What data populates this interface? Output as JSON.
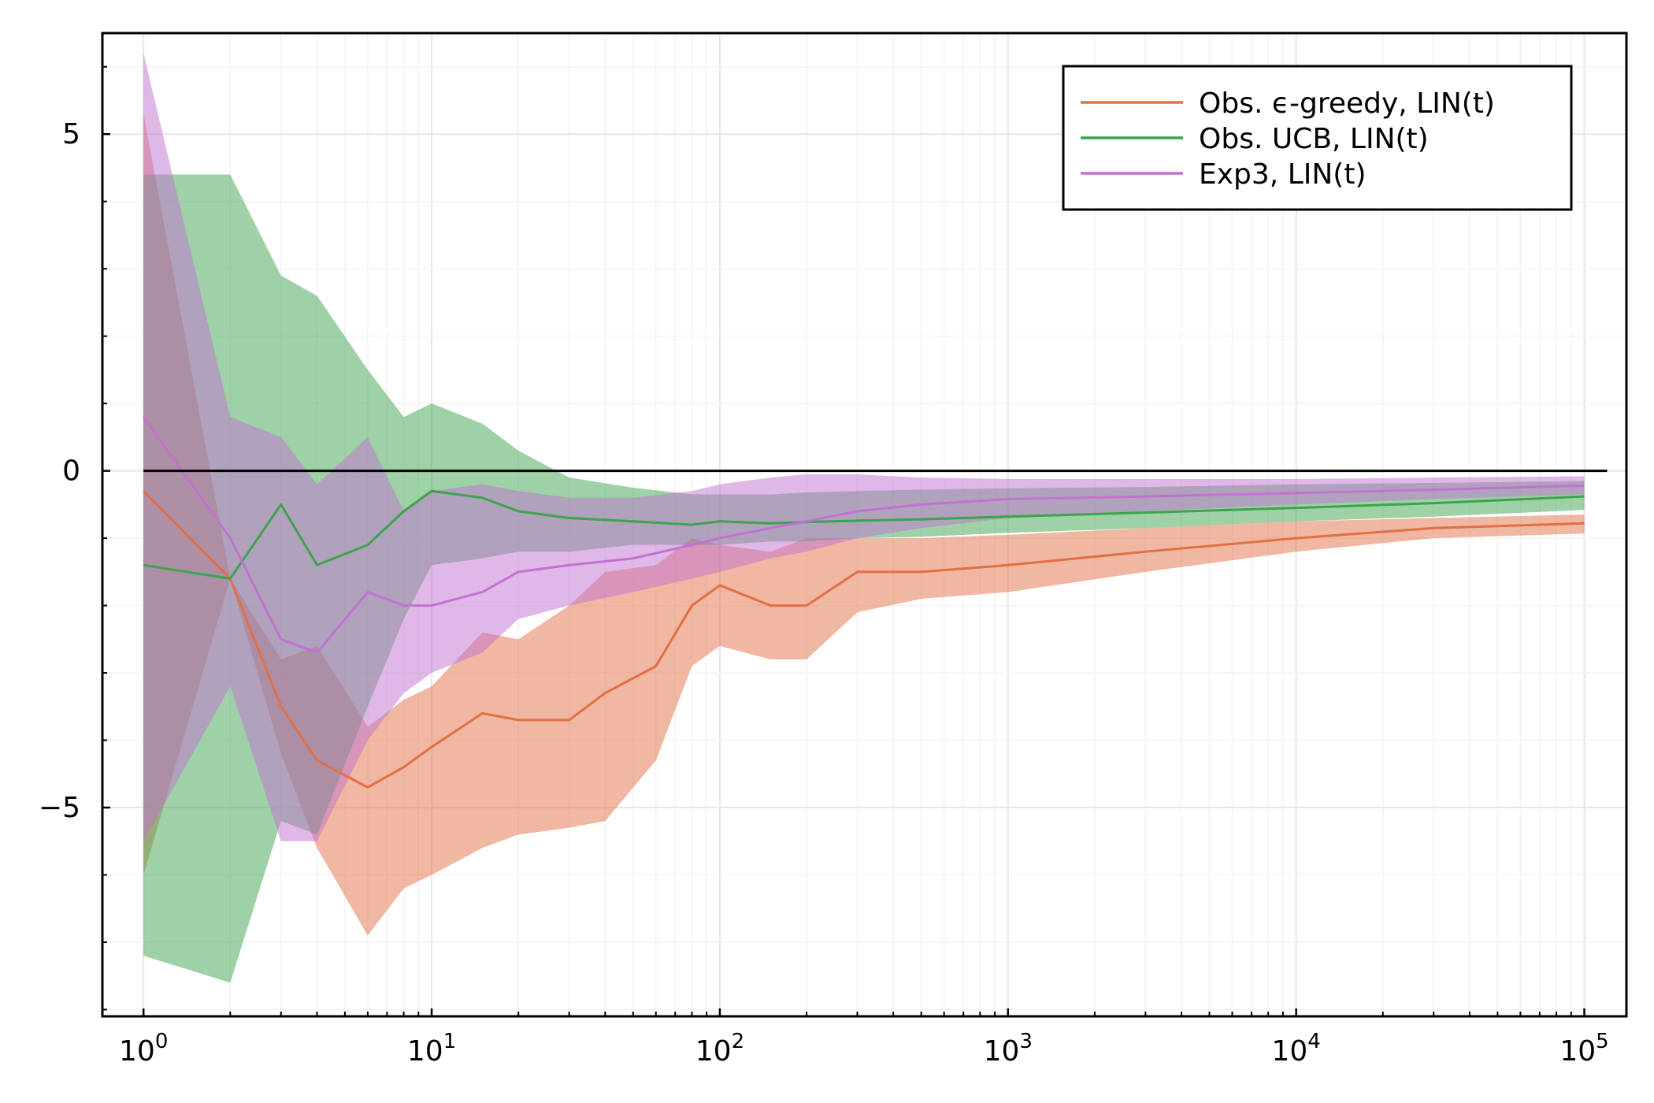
{
  "chart_data": {
    "type": "line",
    "title": "",
    "xlabel": "",
    "ylabel": "",
    "xscale": "log10",
    "xlim": [
      0.72,
      140000
    ],
    "ylim": [
      -8.1,
      6.5
    ],
    "grid": true,
    "legend_position": "top-right",
    "x_ticks": [
      {
        "value": 1,
        "base": "10",
        "exp": "0"
      },
      {
        "value": 10,
        "base": "10",
        "exp": "1"
      },
      {
        "value": 100,
        "base": "10",
        "exp": "2"
      },
      {
        "value": 1000,
        "base": "10",
        "exp": "3"
      },
      {
        "value": 10000,
        "base": "10",
        "exp": "4"
      },
      {
        "value": 100000,
        "base": "10",
        "exp": "5"
      }
    ],
    "y_ticks": [
      {
        "value": 5,
        "label": "5"
      },
      {
        "value": 0,
        "label": "0"
      },
      {
        "value": -5,
        "label": "−5"
      }
    ],
    "reference_line": {
      "y": 0,
      "x_range": [
        1,
        120000
      ],
      "color": "#000000"
    },
    "series": [
      {
        "name": "Obs. ϵ-greedy, LIN(t)",
        "color": "#e26f46",
        "x": [
          1,
          2,
          3,
          4,
          6,
          8,
          10,
          15,
          20,
          30,
          40,
          60,
          80,
          100,
          150,
          200,
          300,
          500,
          1000,
          3000,
          10000,
          30000,
          100000
        ],
        "mean": [
          -0.3,
          -1.6,
          -3.5,
          -4.3,
          -4.7,
          -4.4,
          -4.1,
          -3.6,
          -3.7,
          -3.7,
          -3.3,
          -2.9,
          -2.0,
          -1.7,
          -2.0,
          -2.0,
          -1.5,
          -1.5,
          -1.4,
          -1.2,
          -1.0,
          -0.85,
          -0.78
        ],
        "lower": [
          -6.0,
          -1.6,
          -4.2,
          -5.6,
          -6.9,
          -6.2,
          -6.0,
          -5.6,
          -5.4,
          -5.3,
          -5.2,
          -4.3,
          -2.9,
          -2.6,
          -2.8,
          -2.8,
          -2.1,
          -1.9,
          -1.8,
          -1.5,
          -1.2,
          -1.0,
          -0.93
        ],
        "upper": [
          5.3,
          -1.6,
          -2.8,
          -2.6,
          -3.8,
          -3.4,
          -3.2,
          -2.4,
          -2.5,
          -2.0,
          -1.5,
          -1.4,
          -1.0,
          -1.1,
          -1.2,
          -1.0,
          -1.0,
          -1.0,
          -0.95,
          -0.85,
          -0.75,
          -0.7,
          -0.65
        ]
      },
      {
        "name": "Obs. UCB, LIN(t)",
        "color": "#3da44d",
        "x": [
          1,
          2,
          3,
          4,
          6,
          8,
          10,
          15,
          20,
          30,
          50,
          80,
          100,
          150,
          200,
          300,
          500,
          1000,
          3000,
          10000,
          30000,
          100000
        ],
        "mean": [
          -1.4,
          -1.6,
          -0.5,
          -1.4,
          -1.1,
          -0.6,
          -0.3,
          -0.4,
          -0.6,
          -0.7,
          -0.75,
          -0.8,
          -0.75,
          -0.78,
          -0.76,
          -0.74,
          -0.72,
          -0.68,
          -0.62,
          -0.55,
          -0.48,
          -0.38
        ],
        "lower": [
          -7.2,
          -7.6,
          -5.2,
          -5.4,
          -3.5,
          -2.2,
          -1.4,
          -1.3,
          -1.2,
          -1.2,
          -1.1,
          -1.1,
          -1.1,
          -1.05,
          -1.05,
          -1.0,
          -0.98,
          -0.92,
          -0.85,
          -0.75,
          -0.68,
          -0.58
        ],
        "upper": [
          4.4,
          4.4,
          2.9,
          2.6,
          1.5,
          0.8,
          1.0,
          0.7,
          0.3,
          -0.1,
          -0.25,
          -0.35,
          -0.35,
          -0.35,
          -0.32,
          -0.3,
          -0.28,
          -0.26,
          -0.24,
          -0.2,
          -0.18,
          -0.15
        ]
      },
      {
        "name": "Exp3, LIN(t)",
        "color": "#c271d2",
        "x": [
          1,
          2,
          3,
          4,
          6,
          8,
          10,
          15,
          20,
          30,
          50,
          80,
          100,
          150,
          200,
          300,
          500,
          1000,
          3000,
          10000,
          30000,
          100000
        ],
        "mean": [
          0.8,
          -1.0,
          -2.5,
          -2.7,
          -1.8,
          -2.0,
          -2.0,
          -1.8,
          -1.5,
          -1.4,
          -1.3,
          -1.1,
          -1.0,
          -0.85,
          -0.75,
          -0.6,
          -0.5,
          -0.42,
          -0.38,
          -0.33,
          -0.28,
          -0.22
        ],
        "lower": [
          -5.5,
          -3.2,
          -5.5,
          -5.5,
          -4.0,
          -3.3,
          -3.0,
          -2.7,
          -2.2,
          -2.0,
          -1.8,
          -1.6,
          -1.5,
          -1.3,
          -1.2,
          -1.0,
          -0.85,
          -0.7,
          -0.6,
          -0.5,
          -0.42,
          -0.35
        ],
        "upper": [
          6.2,
          0.8,
          0.5,
          -0.2,
          0.5,
          -0.6,
          -0.3,
          -0.2,
          -0.3,
          -0.4,
          -0.4,
          -0.3,
          -0.2,
          -0.1,
          -0.05,
          -0.05,
          -0.1,
          -0.12,
          -0.12,
          -0.12,
          -0.1,
          -0.08
        ]
      }
    ]
  }
}
